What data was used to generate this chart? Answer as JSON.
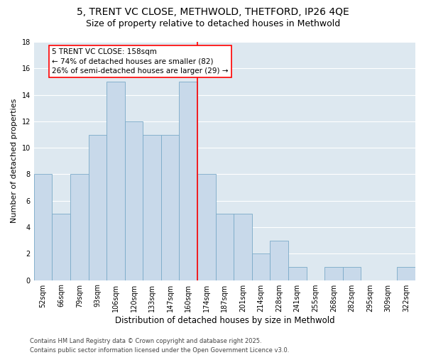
{
  "title": "5, TRENT VC CLOSE, METHWOLD, THETFORD, IP26 4QE",
  "subtitle": "Size of property relative to detached houses in Methwold",
  "xlabel": "Distribution of detached houses by size in Methwold",
  "ylabel": "Number of detached properties",
  "categories": [
    "52sqm",
    "66sqm",
    "79sqm",
    "93sqm",
    "106sqm",
    "120sqm",
    "133sqm",
    "147sqm",
    "160sqm",
    "174sqm",
    "187sqm",
    "201sqm",
    "214sqm",
    "228sqm",
    "241sqm",
    "255sqm",
    "268sqm",
    "282sqm",
    "295sqm",
    "309sqm",
    "322sqm"
  ],
  "values": [
    8,
    5,
    8,
    11,
    15,
    12,
    11,
    11,
    15,
    8,
    5,
    5,
    2,
    3,
    1,
    0,
    1,
    1,
    0,
    0,
    1
  ],
  "bar_color": "#c8d9ea",
  "bar_edge_color": "#7aaac8",
  "vline_index": 8.5,
  "vline_color": "red",
  "annotation_text": "5 TRENT VC CLOSE: 158sqm\n← 74% of detached houses are smaller (82)\n26% of semi-detached houses are larger (29) →",
  "annotation_box_color": "white",
  "annotation_box_edge_color": "red",
  "ylim": [
    0,
    18
  ],
  "yticks": [
    0,
    2,
    4,
    6,
    8,
    10,
    12,
    14,
    16,
    18
  ],
  "background_color": "#dde8f0",
  "grid_color": "white",
  "footer": "Contains HM Land Registry data © Crown copyright and database right 2025.\nContains public sector information licensed under the Open Government Licence v3.0.",
  "title_fontsize": 10,
  "subtitle_fontsize": 9,
  "xlabel_fontsize": 8.5,
  "ylabel_fontsize": 8,
  "tick_fontsize": 7,
  "annotation_fontsize": 7.5,
  "footer_fontsize": 6
}
